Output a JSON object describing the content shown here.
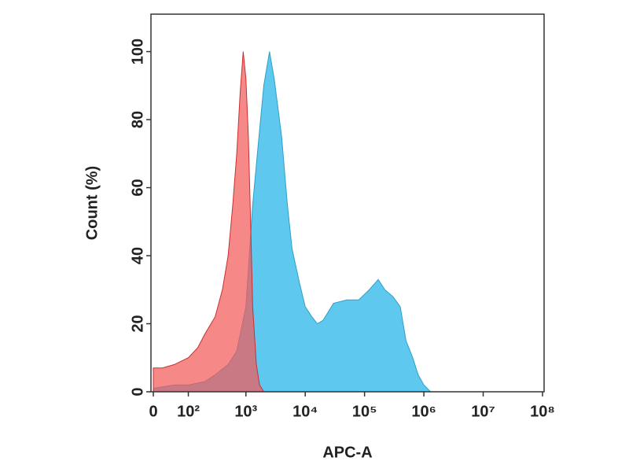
{
  "chart_data": {
    "type": "area",
    "x_label": "APC-A",
    "y_label": "Count  (%)",
    "xscale": "biexponential",
    "xlim": [
      0,
      100000000
    ],
    "xticks": [
      0,
      {
        "value": 100,
        "label": "10²"
      },
      {
        "value": 1000,
        "label": "10³"
      },
      {
        "value": 10000,
        "label": "10⁴"
      },
      {
        "value": 100000,
        "label": "10⁵"
      },
      {
        "value": 1000000,
        "label": "10⁶"
      },
      {
        "value": 10000000,
        "label": "10⁷"
      },
      {
        "value": 100000000,
        "label": "10⁸"
      }
    ],
    "ylim": [
      0,
      111
    ],
    "yticks": [
      0,
      20,
      40,
      60,
      80,
      100
    ],
    "series": [
      {
        "color": "#5fc8ee",
        "stroke": "#2f9fc8",
        "opacity": 1,
        "x": [
          0,
          50,
          100,
          200,
          300,
          500,
          700,
          1000,
          1300,
          1600,
          2000,
          2500,
          3000,
          4000,
          5000,
          6000,
          8000,
          10000,
          13000,
          16000,
          20000,
          30000,
          50000,
          80000,
          120000,
          170000,
          220000,
          300000,
          400000,
          500000,
          650000,
          800000,
          1000000,
          1300000,
          2000000
        ],
        "values": [
          1,
          2,
          2,
          3,
          5,
          8,
          12,
          25,
          55,
          72,
          90,
          100,
          92,
          75,
          55,
          42,
          32,
          25,
          22,
          20,
          21,
          26,
          27,
          27,
          30,
          33,
          30,
          28,
          25,
          15,
          10,
          5,
          2,
          0,
          0
        ]
      },
      {
        "color": "#f25a5a",
        "stroke": "#c83030",
        "opacity": 0.72,
        "x": [
          0,
          20,
          50,
          100,
          150,
          200,
          300,
          400,
          500,
          600,
          700,
          800,
          900,
          1000,
          1100,
          1200,
          1300,
          1500,
          1700,
          2000
        ],
        "values": [
          7,
          7,
          8,
          10,
          13,
          17,
          22,
          30,
          40,
          55,
          70,
          88,
          100,
          92,
          75,
          50,
          25,
          8,
          2,
          0
        ]
      }
    ]
  }
}
